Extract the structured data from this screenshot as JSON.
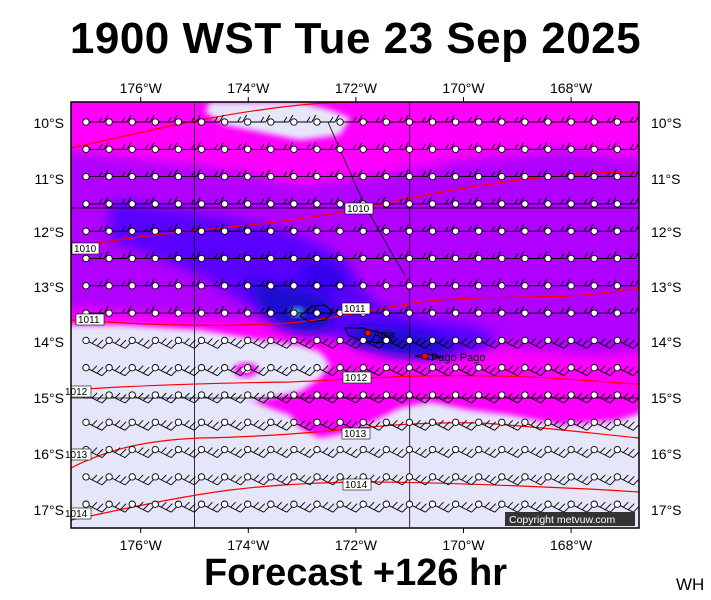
{
  "title": "1900 WST Tue 23 Sep 2025",
  "footer": "Forecast +126 hr",
  "initials": "WH",
  "copyright": "Copyright metvuw.com",
  "map": {
    "lon_labels": [
      "176°W",
      "174°W",
      "172°W",
      "170°W",
      "168°W"
    ],
    "lat_labels": [
      "10°S",
      "11°S",
      "12°S",
      "13°S",
      "14°S",
      "15°S",
      "16°S",
      "17°S"
    ],
    "isobars": [
      {
        "label": "1010",
        "color": "#ff0000"
      },
      {
        "label": "1011",
        "color": "#ff0000"
      },
      {
        "label": "1012",
        "color": "#ff0000"
      },
      {
        "label": "1013",
        "color": "#ff0000"
      },
      {
        "label": "1014",
        "color": "#ff0000"
      }
    ],
    "places": [
      {
        "name": "Apia"
      },
      {
        "name": "Pago Pago"
      }
    ],
    "colors": {
      "no_rain": "#e6e6fa",
      "light_rain": "#ff00ff",
      "moderate_rain": "#b000ff",
      "heavy_rain": "#5a00ff",
      "very_heavy_rain": "#1a10d0",
      "extreme_rain": "#3aa0e0",
      "isobar": "#ff0000",
      "place_marker": "#ff0000"
    }
  }
}
